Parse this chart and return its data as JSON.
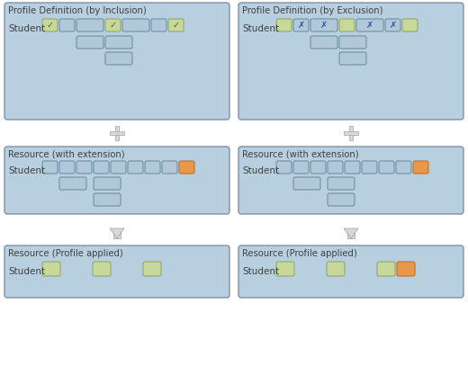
{
  "bg_color": "#ffffff",
  "panel_fill": "#b8cfe0",
  "panel_edge": "#8090a8",
  "box_blue_fill": "#b0c8d8",
  "box_blue_edge": "#7090a8",
  "box_green_fill": "#c8d898",
  "box_green_edge": "#90a870",
  "box_orange_fill": "#e89848",
  "box_orange_edge": "#c07030",
  "text_dark": "#404040",
  "check_color": "#386838",
  "cross_color": "#2858a0",
  "plus_fill": "#d8d8d8",
  "plus_edge": "#a0a0a0",
  "arrow_fill": "#d8d8d8",
  "arrow_edge": "#a0a0a0",
  "title_left": "Profile Definition (by Inclusion)",
  "title_right": "Profile Definition (by Exclusion)",
  "res_ext": "Resource (with extension)",
  "res_app": "Resource (Profile applied)",
  "student": "Student",
  "fig_w": 5.2,
  "fig_h": 4.07,
  "dpi": 100
}
